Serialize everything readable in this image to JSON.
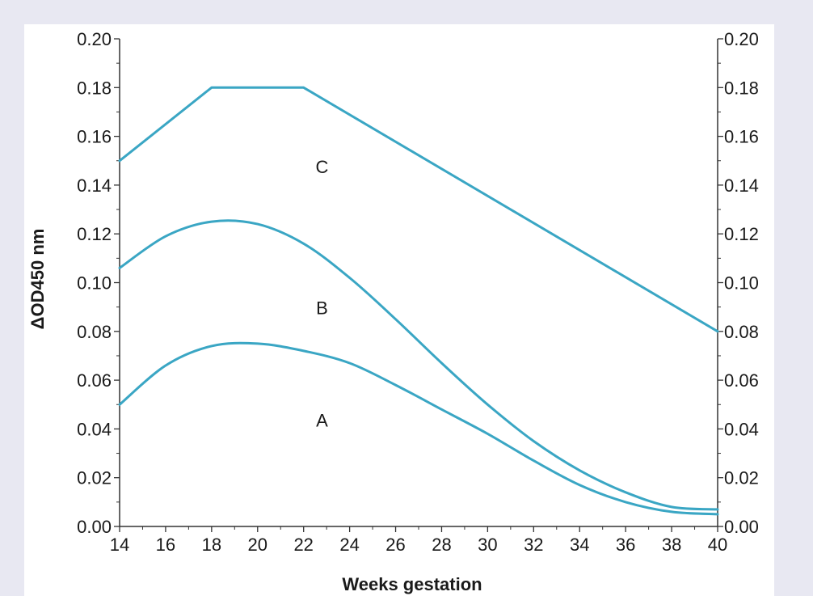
{
  "chart_data": {
    "type": "line",
    "title": "",
    "xlabel": "Weeks gestation",
    "ylabel": "ΔOD450 nm",
    "xlim": [
      14,
      40
    ],
    "ylim": [
      0.0,
      0.2
    ],
    "x_ticks": [
      14,
      16,
      18,
      20,
      22,
      24,
      26,
      28,
      30,
      32,
      34,
      36,
      38,
      40
    ],
    "x_tick_labels": [
      "14",
      "16",
      "18",
      "20",
      "22",
      "24",
      "26",
      "28",
      "30",
      "32",
      "34",
      "36",
      "38",
      "40"
    ],
    "y_ticks": [
      0.0,
      0.02,
      0.04,
      0.06,
      0.08,
      0.1,
      0.12,
      0.14,
      0.16,
      0.18,
      0.2
    ],
    "y_tick_labels": [
      "0.00",
      "0.02",
      "0.04",
      "0.06",
      "0.08",
      "0.10",
      "0.12",
      "0.14",
      "0.16",
      "0.18",
      "0.20"
    ],
    "grid": false,
    "line_color": "#3aa6c4",
    "series": [
      {
        "name": "C",
        "label_at": [
          22.8,
          0.145
        ],
        "x": [
          14,
          18,
          22,
          40
        ],
        "values": [
          0.15,
          0.18,
          0.18,
          0.08
        ]
      },
      {
        "name": "B",
        "label_at": [
          22.8,
          0.087
        ],
        "x": [
          14,
          16,
          18,
          20,
          22,
          24,
          26,
          28,
          30,
          32,
          34,
          36,
          38,
          40
        ],
        "values": [
          0.106,
          0.119,
          0.125,
          0.124,
          0.116,
          0.102,
          0.085,
          0.067,
          0.05,
          0.035,
          0.023,
          0.014,
          0.008,
          0.007
        ]
      },
      {
        "name": "A",
        "label_at": [
          22.8,
          0.041
        ],
        "x": [
          14,
          16,
          18,
          20,
          22,
          24,
          26,
          28,
          30,
          32,
          34,
          36,
          38,
          40
        ],
        "values": [
          0.05,
          0.066,
          0.074,
          0.075,
          0.072,
          0.067,
          0.058,
          0.048,
          0.038,
          0.027,
          0.017,
          0.01,
          0.006,
          0.005
        ]
      }
    ]
  }
}
